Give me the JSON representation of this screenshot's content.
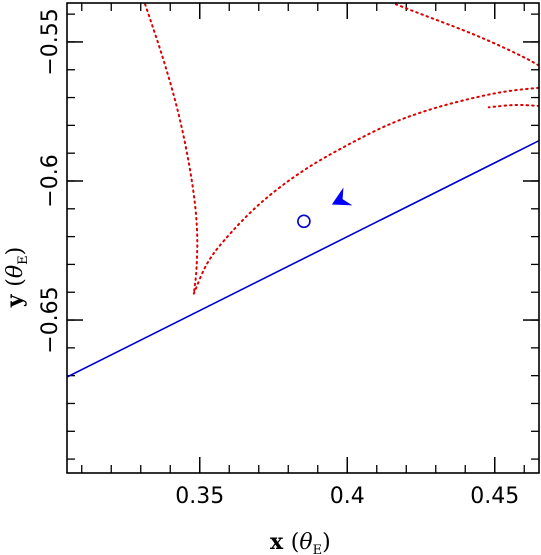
{
  "chart_data": {
    "type": "line",
    "xlabel": "x (θE)",
    "ylabel": "y (θE)",
    "xlabel_parts": {
      "var": "x",
      "theta": "θ",
      "sub": "E"
    },
    "ylabel_parts": {
      "var": "y",
      "theta": "θ",
      "sub": "E"
    },
    "xlim": [
      0.305,
      0.465
    ],
    "ylim": [
      -0.705,
      -0.536
    ],
    "x_ticks": [
      {
        "value": 0.35,
        "label": "0.35"
      },
      {
        "value": 0.4,
        "label": "0.4"
      },
      {
        "value": 0.45,
        "label": "0.45"
      }
    ],
    "y_ticks": [
      {
        "value": -0.55,
        "label": "−0.55"
      },
      {
        "value": -0.6,
        "label": "−0.6"
      },
      {
        "value": -0.65,
        "label": "−0.65"
      }
    ],
    "x_minor_step": 0.01,
    "y_minor_step": 0.01,
    "trajectory_line": {
      "color": "#0000cc",
      "points": [
        [
          0.305,
          -0.6705
        ],
        [
          0.465,
          -0.5855
        ]
      ]
    },
    "direction_arrow": {
      "x": 0.3975,
      "y": -0.607,
      "direction": "toward lower-left",
      "color": "#0000ff"
    },
    "source_marker": {
      "x": 0.3853,
      "y": -0.6145,
      "shape": "open-circle",
      "color": "#0000cc"
    },
    "caustic_curves": {
      "color": "#dd0000",
      "style": "dotted",
      "series": [
        {
          "points": [
            [
              0.3315,
              -0.5365
            ],
            [
              0.338,
              -0.557
            ],
            [
              0.3435,
              -0.578
            ],
            [
              0.3475,
              -0.6
            ],
            [
              0.3493,
              -0.617
            ],
            [
              0.349,
              -0.632
            ],
            [
              0.348,
              -0.6405
            ]
          ]
        },
        {
          "points": [
            [
              0.348,
              -0.6405
            ],
            [
              0.352,
              -0.63
            ],
            [
              0.3575,
              -0.622
            ],
            [
              0.37,
              -0.608
            ],
            [
              0.385,
              -0.596
            ],
            [
              0.4,
              -0.587
            ],
            [
              0.415,
              -0.579
            ],
            [
              0.43,
              -0.5735
            ],
            [
              0.445,
              -0.5695
            ],
            [
              0.455,
              -0.5675
            ],
            [
              0.465,
              -0.5665
            ]
          ]
        },
        {
          "points": [
            [
              0.413,
              -0.535
            ],
            [
              0.425,
              -0.54
            ],
            [
              0.44,
              -0.546
            ],
            [
              0.45,
              -0.5505
            ],
            [
              0.46,
              -0.5555
            ],
            [
              0.465,
              -0.5585
            ]
          ]
        },
        {
          "points": [
            [
              0.465,
              -0.573
            ],
            [
              0.457,
              -0.5725
            ],
            [
              0.448,
              -0.5735
            ]
          ]
        }
      ]
    }
  }
}
